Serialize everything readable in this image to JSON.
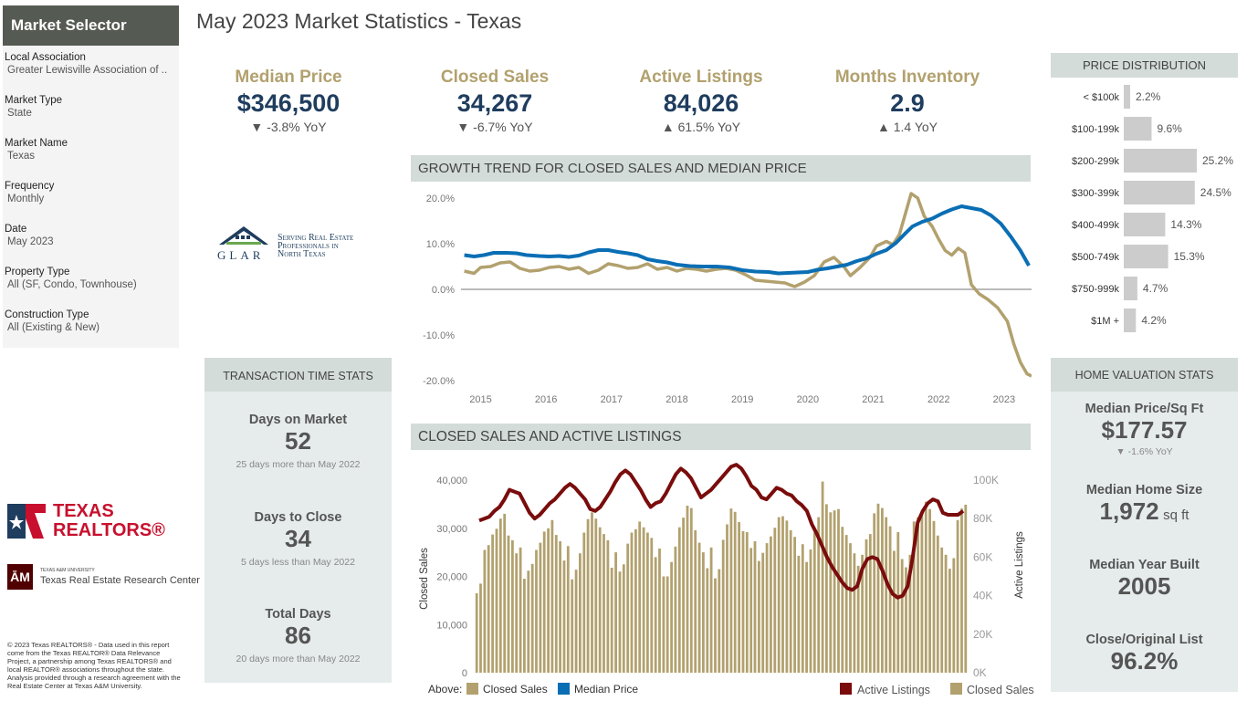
{
  "sidebar": {
    "title": "Market Selector",
    "filters": [
      {
        "label": "Local Association",
        "value": "Greater Lewisville Association of .."
      },
      {
        "label": "Market Type",
        "value": "State"
      },
      {
        "label": "Market Name",
        "value": "Texas"
      },
      {
        "label": "Frequency",
        "value": "Monthly"
      },
      {
        "label": "Date",
        "value": "May 2023"
      },
      {
        "label": "Property Type",
        "value": "All (SF, Condo, Townhouse)"
      },
      {
        "label": "Construction Type",
        "value": "All (Existing & New)"
      }
    ]
  },
  "page_title": "May 2023 Market Statistics - Texas",
  "kpis": [
    {
      "label": "Median Price",
      "value": "$346,500",
      "change": "▼ -3.8% YoY"
    },
    {
      "label": "Closed Sales",
      "value": "34,267",
      "change": "▼ -6.7% YoY"
    },
    {
      "label": "Active Listings",
      "value": "84,026",
      "change": "▲ 61.5% YoY"
    },
    {
      "label": "Months Inventory",
      "value": "2.9",
      "change": "▲ 1.4 YoY"
    }
  ],
  "glar": {
    "letters": "GLAR",
    "tagline": [
      "Serving Real Estate",
      "Professionals in",
      "North Texas"
    ]
  },
  "logos": {
    "texas_realtors": [
      "TEXAS",
      "REALTORS®"
    ],
    "tamu_small": "TEXAS A&M UNIVERSITY",
    "tamu": "Texas Real Estate Research Center"
  },
  "footer_note": "© 2023 Texas REALTORS® - Data used in this report come from the Texas REALTOR® Data Relevance Project, a partnership among Texas REALTORS® and local REALTOR® associations throughout the state. Analysis provided through a research agreement with the Real Estate Center at Texas A&M University.",
  "transaction": {
    "title": "TRANSACTION TIME STATS",
    "items": [
      {
        "label": "Days on Market",
        "value": "52",
        "note": "25 days more than May 2022"
      },
      {
        "label": "Days to Close",
        "value": "34",
        "note": "5 days less than May 2022"
      },
      {
        "label": "Total Days",
        "value": "86",
        "note": "20 days more than May 2022"
      }
    ]
  },
  "valuation": {
    "title": "HOME VALUATION STATS",
    "items": [
      {
        "label": "Median Price/Sq Ft",
        "value": "$177.57",
        "note": "▼ -1.6% YoY"
      },
      {
        "label": "Median Home Size",
        "value": "1,972",
        "unit": "sq ft"
      },
      {
        "label": "Median Year Built",
        "value": "2005"
      },
      {
        "label": "Close/Original List",
        "value": "96.2%"
      }
    ]
  },
  "colors": {
    "gold": "#b2a16e",
    "blue": "#0a6eb4",
    "maroon": "#7a0c0c",
    "navy": "#1f3d5e",
    "panel": "#e6eceb"
  },
  "chart_data": [
    {
      "type": "line",
      "title": "GROWTH TREND FOR CLOSED SALES AND MEDIAN PRICE",
      "x_ticks": [
        "2015",
        "2016",
        "2017",
        "2018",
        "2019",
        "2020",
        "2021",
        "2022",
        "2023"
      ],
      "y_ticks": [
        "20.0%",
        "10.0%",
        "0.0%",
        "-10.0%",
        "-20.0%"
      ],
      "ylim": [
        -20,
        20
      ],
      "x_range": [
        2014.7,
        2023.42
      ],
      "series": [
        {
          "name": "Closed Sales",
          "color": "#b2a16e",
          "points": [
            [
              2014.75,
              4
            ],
            [
              2014.9,
              3.5
            ],
            [
              2015.0,
              4.8
            ],
            [
              2015.15,
              5
            ],
            [
              2015.3,
              5.8
            ],
            [
              2015.45,
              6
            ],
            [
              2015.6,
              4.6
            ],
            [
              2015.75,
              4.0
            ],
            [
              2015.9,
              4.2
            ],
            [
              2016.05,
              4.8
            ],
            [
              2016.2,
              5.0
            ],
            [
              2016.35,
              4.4
            ],
            [
              2016.5,
              4.8
            ],
            [
              2016.65,
              3.5
            ],
            [
              2016.8,
              4.2
            ],
            [
              2016.95,
              5.6
            ],
            [
              2017.1,
              5.2
            ],
            [
              2017.25,
              4.6
            ],
            [
              2017.4,
              4.8
            ],
            [
              2017.55,
              5.6
            ],
            [
              2017.7,
              4.4
            ],
            [
              2017.85,
              4.8
            ],
            [
              2018.0,
              4.0
            ],
            [
              2018.15,
              4.6
            ],
            [
              2018.3,
              4.4
            ],
            [
              2018.45,
              4.0
            ],
            [
              2018.6,
              4.4
            ],
            [
              2018.75,
              4.6
            ],
            [
              2018.9,
              4.2
            ],
            [
              2019.05,
              3.2
            ],
            [
              2019.2,
              2.0
            ],
            [
              2019.35,
              1.8
            ],
            [
              2019.5,
              1.6
            ],
            [
              2019.65,
              1.4
            ],
            [
              2019.8,
              0.6
            ],
            [
              2019.95,
              1.6
            ],
            [
              2020.1,
              3.0
            ],
            [
              2020.25,
              6.0
            ],
            [
              2020.4,
              7.0
            ],
            [
              2020.55,
              5.0
            ],
            [
              2020.65,
              3.0
            ],
            [
              2020.8,
              4.8
            ],
            [
              2020.95,
              7.0
            ],
            [
              2021.05,
              9.5
            ],
            [
              2021.2,
              10.5
            ],
            [
              2021.3,
              9.8
            ],
            [
              2021.4,
              12
            ],
            [
              2021.5,
              17
            ],
            [
              2021.58,
              21
            ],
            [
              2021.68,
              20
            ],
            [
              2021.78,
              16
            ],
            [
              2021.9,
              13.8
            ],
            [
              2022.0,
              11.0
            ],
            [
              2022.1,
              8.5
            ],
            [
              2022.2,
              7.5
            ],
            [
              2022.3,
              9.0
            ],
            [
              2022.4,
              8.0
            ],
            [
              2022.5,
              1.0
            ],
            [
              2022.62,
              -1.0
            ],
            [
              2022.75,
              -2.2
            ],
            [
              2022.9,
              -4.0
            ],
            [
              2023.05,
              -7.0
            ],
            [
              2023.15,
              -12
            ],
            [
              2023.25,
              -16
            ],
            [
              2023.35,
              -18.5
            ],
            [
              2023.42,
              -19
            ]
          ]
        },
        {
          "name": "Median Price",
          "color": "#0a6eb4",
          "points": [
            [
              2014.75,
              7.5
            ],
            [
              2014.9,
              7.2
            ],
            [
              2015.05,
              7.5
            ],
            [
              2015.2,
              8.0
            ],
            [
              2015.4,
              8.0
            ],
            [
              2015.55,
              7.9
            ],
            [
              2015.7,
              7.5
            ],
            [
              2015.9,
              7.3
            ],
            [
              2016.05,
              7.2
            ],
            [
              2016.2,
              7.3
            ],
            [
              2016.35,
              7.1
            ],
            [
              2016.5,
              7.4
            ],
            [
              2016.65,
              8.1
            ],
            [
              2016.8,
              8.6
            ],
            [
              2016.95,
              8.6
            ],
            [
              2017.1,
              8.2
            ],
            [
              2017.25,
              7.9
            ],
            [
              2017.4,
              7.5
            ],
            [
              2017.55,
              6.6
            ],
            [
              2017.7,
              6.2
            ],
            [
              2017.85,
              5.9
            ],
            [
              2018.0,
              5.4
            ],
            [
              2018.2,
              5.1
            ],
            [
              2018.4,
              5.0
            ],
            [
              2018.6,
              5.0
            ],
            [
              2018.8,
              4.8
            ],
            [
              2019.0,
              4.2
            ],
            [
              2019.2,
              3.9
            ],
            [
              2019.4,
              3.8
            ],
            [
              2019.55,
              3.5
            ],
            [
              2019.7,
              3.6
            ],
            [
              2019.85,
              3.7
            ],
            [
              2020.0,
              3.8
            ],
            [
              2020.15,
              4.3
            ],
            [
              2020.3,
              4.6
            ],
            [
              2020.45,
              5.0
            ],
            [
              2020.6,
              5.4
            ],
            [
              2020.75,
              6.2
            ],
            [
              2020.9,
              6.8
            ],
            [
              2021.05,
              7.8
            ],
            [
              2021.2,
              8.6
            ],
            [
              2021.35,
              10.2
            ],
            [
              2021.5,
              12.4
            ],
            [
              2021.6,
              13.8
            ],
            [
              2021.75,
              14.8
            ],
            [
              2021.9,
              15.5
            ],
            [
              2022.05,
              16.6
            ],
            [
              2022.2,
              17.5
            ],
            [
              2022.35,
              18.2
            ],
            [
              2022.5,
              17.8
            ],
            [
              2022.65,
              17.4
            ],
            [
              2022.8,
              16.2
            ],
            [
              2022.95,
              14.4
            ],
            [
              2023.1,
              11.6
            ],
            [
              2023.25,
              8.5
            ],
            [
              2023.38,
              5.2
            ]
          ]
        }
      ],
      "legend": "bottom"
    },
    {
      "type": "bar",
      "title": "CLOSED SALES AND ACTIVE LISTINGS",
      "ylabel": "Closed Sales",
      "y2label": "Active Listings",
      "y_ticks": [
        "40,000",
        "30,000",
        "20,000",
        "10,000",
        "0"
      ],
      "y2_ticks": [
        "100K",
        "80K",
        "60K",
        "40K",
        "20K",
        "0K"
      ],
      "ylim": [
        0,
        40000
      ],
      "y2lim": [
        0,
        100000
      ],
      "bar_series": {
        "name": "Closed Sales",
        "color": "#b2a16e",
        "values": [
          16500,
          18500,
          25500,
          26500,
          28700,
          29900,
          32000,
          33000,
          28500,
          27500,
          24800,
          26000,
          19500,
          21200,
          22600,
          25500,
          27000,
          29300,
          30000,
          31700,
          28600,
          27300,
          23300,
          26300,
          19400,
          21400,
          24800,
          29100,
          31900,
          33300,
          32000,
          30200,
          28800,
          27500,
          21800,
          25000,
          21000,
          22500,
          26800,
          29100,
          29800,
          31400,
          30200,
          29100,
          28000,
          24000,
          25800,
          20000,
          20000,
          23000,
          26200,
          30200,
          32200,
          34700,
          34200,
          29600,
          27000,
          25000,
          21700,
          26000,
          19600,
          21500,
          27600,
          30800,
          34100,
          33400,
          31300,
          29400,
          29200,
          25900,
          27300,
          23200,
          24900,
          26900,
          28300,
          30100,
          32300,
          32500,
          31600,
          29600,
          28200,
          24300,
          26700,
          23000,
          25600,
          29100,
          32300,
          39700,
          35000,
          33300,
          33700,
          34000,
          30300,
          28600,
          26900,
          24800,
          22200,
          24500,
          27700,
          28800,
          33100,
          35100,
          34200,
          32300,
          30400,
          25300,
          29200,
          23600,
          21900,
          24500,
          31400,
          32300,
          33000,
          35500,
          34000,
          31500,
          28500,
          26000,
          24500,
          21600,
          23800,
          31700,
          34100,
          34900
        ]
      },
      "line_series": {
        "name": "Active Listings",
        "color": "#7a0c0c",
        "values": [
          79000,
          80000,
          81000,
          84000,
          86000,
          90000,
          95000,
          94000,
          93000,
          88000,
          83000,
          80000,
          82000,
          85000,
          88000,
          90000,
          93000,
          96000,
          98000,
          96000,
          93000,
          90000,
          85000,
          84000,
          86000,
          90000,
          94000,
          99000,
          103000,
          105000,
          103000,
          99000,
          95000,
          90000,
          86000,
          88000,
          89000,
          93000,
          98000,
          103000,
          106000,
          104000,
          101000,
          96000,
          91000,
          93000,
          95000,
          98000,
          101000,
          104000,
          107000,
          108000,
          106000,
          102000,
          97000,
          95000,
          91000,
          90000,
          93000,
          96000,
          95000,
          93000,
          92000,
          89000,
          87000,
          84000,
          77000,
          72000,
          66000,
          60000,
          55000,
          51000,
          47000,
          44000,
          43000,
          45000,
          54000,
          59000,
          60000,
          59000,
          53000,
          46000,
          41000,
          39000,
          40000,
          45000,
          60000,
          78000,
          84000,
          88000,
          90000,
          89000,
          83000,
          82000,
          82000,
          82000,
          84000
        ]
      },
      "legend": "bottom-right"
    },
    {
      "type": "bar",
      "title": "PRICE DISTRIBUTION",
      "orientation": "horizontal",
      "categories": [
        "< $100k",
        "$100-199k",
        "$200-299k",
        "$300-399k",
        "$400-499k",
        "$500-749k",
        "$750-999k",
        "$1M +"
      ],
      "values": [
        2.2,
        9.6,
        25.2,
        24.5,
        14.3,
        15.3,
        4.7,
        4.2
      ],
      "labels": [
        "2.2%",
        "9.6%",
        "25.2%",
        "24.5%",
        "14.3%",
        "15.3%",
        "4.7%",
        "4.2%"
      ],
      "color": "#ccc"
    }
  ],
  "legend_above": {
    "prefix": "Above:",
    "items": [
      "Closed Sales",
      "Median Price"
    ]
  },
  "legend_below": {
    "items": [
      "Active Listings",
      "Closed Sales"
    ]
  }
}
